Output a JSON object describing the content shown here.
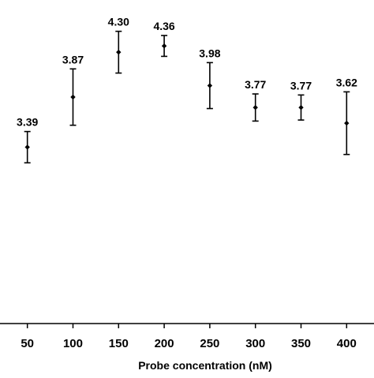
{
  "chart_data": {
    "type": "scatter",
    "title": "",
    "xlabel": "Probe concentration (nM)",
    "ylabel": "",
    "x": [
      50,
      100,
      150,
      200,
      250,
      300,
      350,
      400
    ],
    "tick_labels": [
      "50",
      "100",
      "150",
      "200",
      "250",
      "300",
      "350",
      "400"
    ],
    "series": [
      {
        "values": [
          3.39,
          3.87,
          4.3,
          4.36,
          3.98,
          3.77,
          3.77,
          3.62
        ],
        "labels": [
          "3.39",
          "3.87",
          "4.30",
          "4.36",
          "3.98",
          "3.77",
          "3.77",
          "3.62"
        ],
        "error_low": [
          0.15,
          0.27,
          0.2,
          0.1,
          0.22,
          0.13,
          0.12,
          0.3
        ],
        "error_high": [
          0.15,
          0.27,
          0.2,
          0.1,
          0.22,
          0.13,
          0.12,
          0.3
        ]
      }
    ],
    "xlim": [
      20,
      430
    ],
    "ylim": [
      1.7,
      4.8
    ],
    "grid": false,
    "legend": "none",
    "colors": {
      "marker": "#000000",
      "axis": "#000000",
      "background": "#ffffff"
    }
  }
}
